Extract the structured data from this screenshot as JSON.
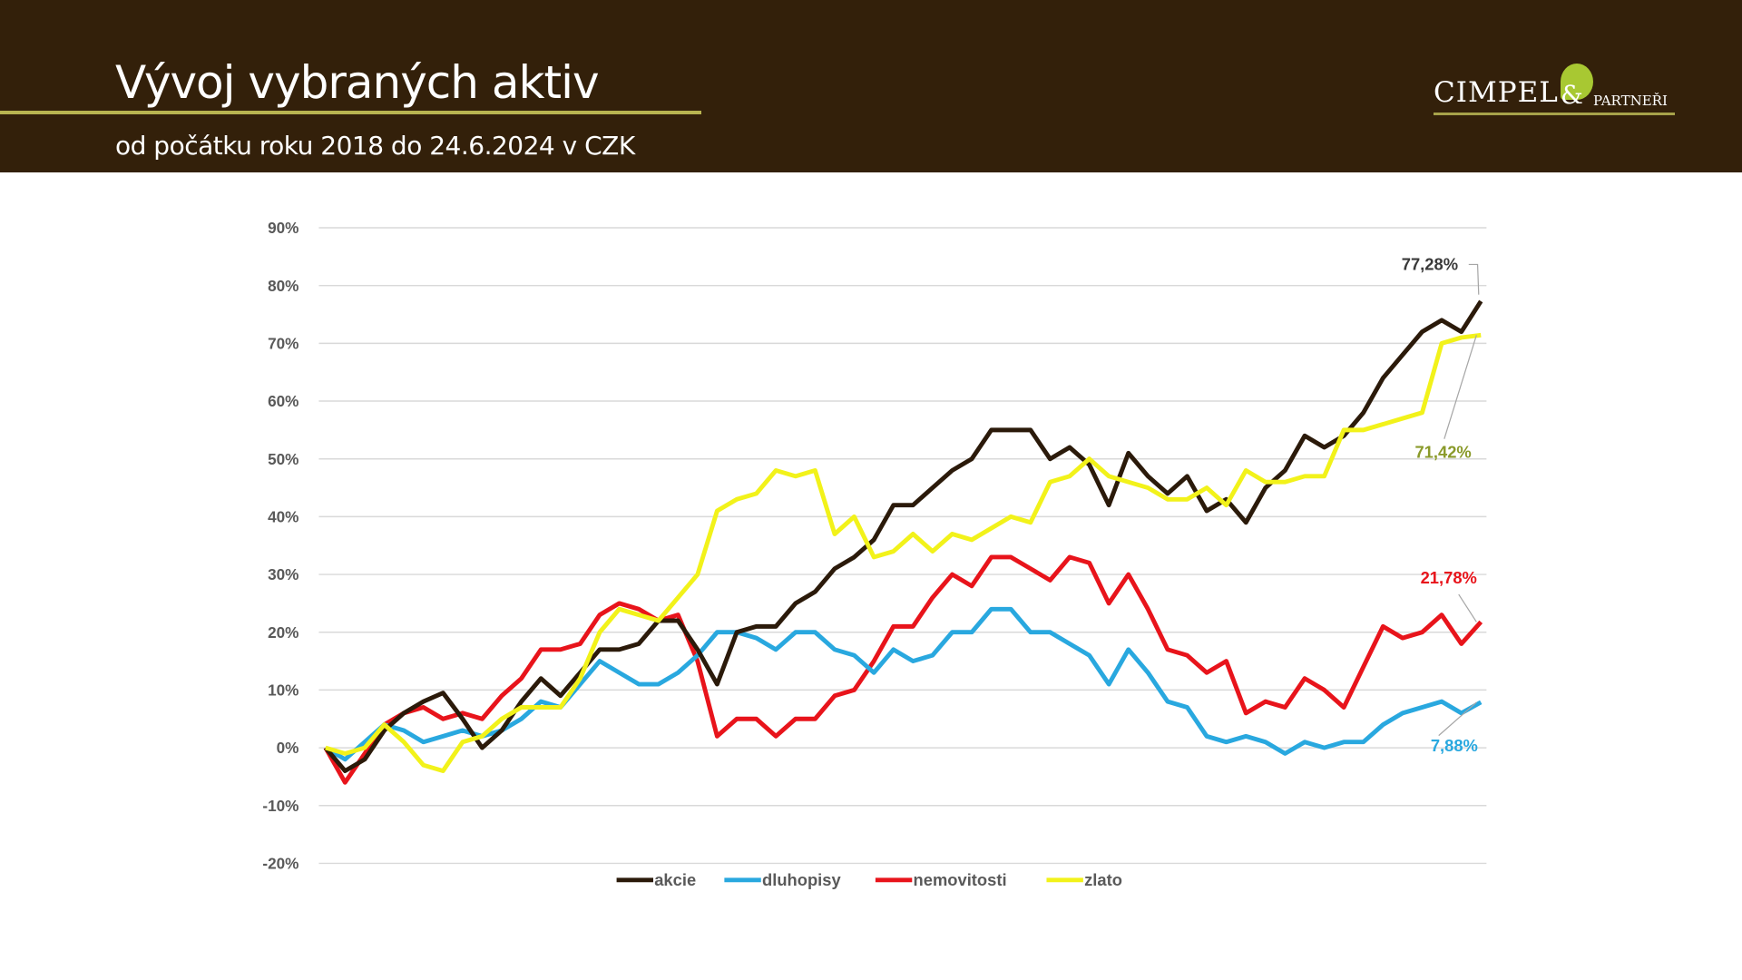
{
  "header": {
    "title": "Vývoj vybraných aktiv",
    "subtitle": "od počátku roku 2018 do 24.6.2024 v CZK",
    "logo": {
      "main": "CIMPEL",
      "amp": "&",
      "sub": "PARTNEŘI",
      "icon": "leaf-icon"
    },
    "background": "#33200a"
  },
  "chart_data": {
    "type": "line",
    "title": "",
    "xlabel": "",
    "ylabel": "",
    "ylim": [
      -20,
      90
    ],
    "yticks": [
      -20,
      -10,
      0,
      10,
      20,
      30,
      40,
      50,
      60,
      70,
      80,
      90
    ],
    "ytick_labels": [
      "-20%",
      "-10%",
      "0%",
      "10%",
      "20%",
      "30%",
      "40%",
      "50%",
      "60%",
      "70%",
      "80%",
      "90%"
    ],
    "grid": true,
    "legend_position": "bottom",
    "series": [
      {
        "name": "akcie",
        "color": "#2b1a0a",
        "end_label": "77,28%",
        "label_color": "#3a3a3a",
        "values": [
          0,
          -4,
          -2,
          3,
          6,
          8,
          9.5,
          5,
          0,
          3,
          8,
          12,
          9,
          13,
          17,
          17,
          18,
          22,
          22,
          17,
          11,
          20,
          21,
          21,
          25,
          27,
          31,
          33,
          36,
          42,
          42,
          45,
          48,
          50,
          55,
          55,
          55,
          50,
          52,
          49,
          42,
          51,
          47,
          44,
          47,
          41,
          43,
          39,
          45,
          48,
          54,
          52,
          54,
          58,
          64,
          68,
          72,
          74,
          72,
          77.28
        ]
      },
      {
        "name": "dluhopisy",
        "color": "#29a8df",
        "end_label": "7,88%",
        "label_color": "#29a8df",
        "values": [
          0,
          -2,
          1,
          4,
          3,
          1,
          2,
          3,
          2,
          3,
          5,
          8,
          7,
          11,
          15,
          13,
          11,
          11,
          13,
          16,
          20,
          20,
          19,
          17,
          20,
          20,
          17,
          16,
          13,
          17,
          15,
          16,
          20,
          20,
          24,
          24,
          20,
          20,
          18,
          16,
          11,
          17,
          13,
          8,
          7,
          2,
          1,
          2,
          1,
          -1,
          1,
          0,
          1,
          1,
          4,
          6,
          7,
          8,
          6,
          7.88
        ]
      },
      {
        "name": "nemovitosti",
        "color": "#e8141b",
        "end_label": "21,78%",
        "label_color": "#e8141b",
        "values": [
          0,
          -6,
          -1,
          4,
          6,
          7,
          5,
          6,
          5,
          9,
          12,
          17,
          17,
          18,
          23,
          25,
          24,
          22,
          23,
          15,
          2,
          5,
          5,
          2,
          5,
          5,
          9,
          10,
          15,
          21,
          21,
          26,
          30,
          28,
          33,
          33,
          31,
          29,
          33,
          32,
          25,
          30,
          24,
          17,
          16,
          13,
          15,
          6,
          8,
          7,
          12,
          10,
          7,
          14,
          21,
          19,
          20,
          23,
          18,
          21.78
        ]
      },
      {
        "name": "zlato",
        "color": "#f2f21a",
        "end_label": "71,42%",
        "label_color": "#8a9a2a",
        "values": [
          0,
          -1,
          0,
          4,
          1,
          -3,
          -4,
          1,
          2,
          5,
          7,
          7,
          7,
          12,
          20,
          24,
          23,
          22,
          26,
          30,
          41,
          43,
          44,
          48,
          47,
          48,
          37,
          40,
          33,
          34,
          37,
          34,
          37,
          36,
          38,
          40,
          39,
          46,
          47,
          50,
          47,
          46,
          45,
          43,
          43,
          45,
          42,
          48,
          46,
          46,
          47,
          47,
          55,
          55,
          56,
          57,
          58,
          70,
          71,
          71.42
        ]
      }
    ]
  }
}
